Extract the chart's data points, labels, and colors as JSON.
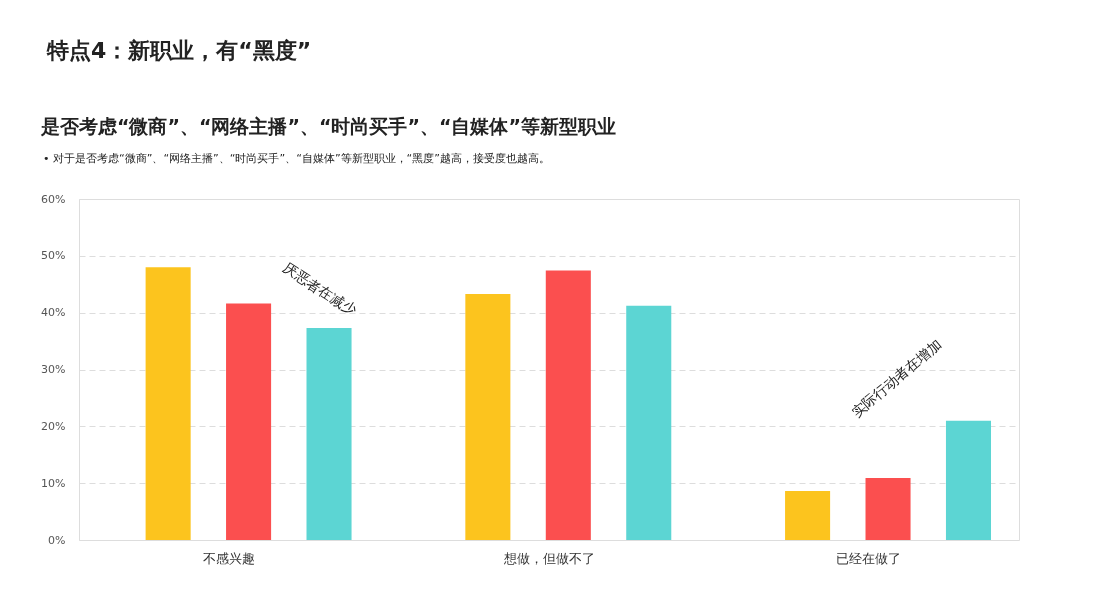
{
  "chart_data": {
    "type": "bar",
    "title": "特点4：新职业，有“黑度”",
    "subtitle": "是否考虑“微商”、“网络主播”、“时尚买手”、“自媒体”等新型职业",
    "annotations": [
      "• 对于是否考虑“微商”、“网络主播”、“时尚买手”、“自媒体”等新型职业，“黑度”越高，接受度也越高。",
      "厌恶者在减少",
      "实际行动者在增加"
    ],
    "categories": [
      "不感兴趣",
      "想做，但做不了",
      "已经在做了"
    ],
    "series": [
      {
        "color": "#fcc41e",
        "values": [
          48,
          43.3,
          8.6
        ]
      },
      {
        "color": "#fb4f4f",
        "values": [
          41.6,
          47.4,
          10.9
        ]
      },
      {
        "color": "#5cd5d3",
        "values": [
          37.3,
          41.2,
          21
        ]
      }
    ],
    "ylim": [
      0,
      60
    ],
    "yticks": [
      {
        "value": 0,
        "label": "0%"
      },
      {
        "value": 10,
        "label": "10%"
      },
      {
        "value": 20,
        "label": "20%"
      },
      {
        "value": 30,
        "label": "30%"
      },
      {
        "value": 40,
        "label": "40%"
      },
      {
        "value": 50,
        "label": "50%"
      },
      {
        "value": 60,
        "label": "60%"
      }
    ],
    "grid": "y"
  }
}
